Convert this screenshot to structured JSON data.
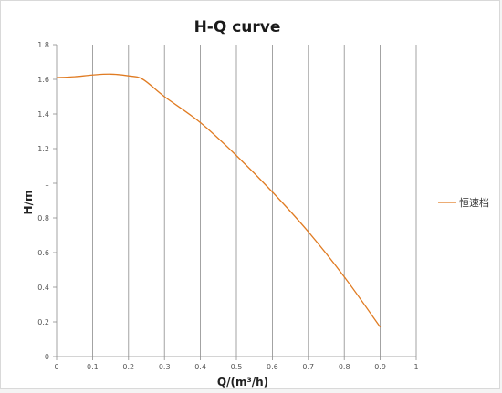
{
  "chart_data": {
    "type": "line",
    "title": "H-Q  curve",
    "xlabel": "Q/(m³/h)",
    "ylabel": "H/m",
    "xlim": [
      0,
      1
    ],
    "ylim": [
      0,
      1.8
    ],
    "x_ticks": [
      0,
      0.1,
      0.2,
      0.3,
      0.4,
      0.5,
      0.6,
      0.7,
      0.8,
      0.9,
      1
    ],
    "x_tick_labels": [
      "0",
      "0.1",
      "0.2",
      "0.3",
      "0.4",
      "0.5",
      "0.6",
      "0.7",
      "0.8",
      "0.9",
      "1"
    ],
    "y_ticks": [
      0,
      0.2,
      0.4,
      0.6,
      0.8,
      1,
      1.2,
      1.4,
      1.6,
      1.8
    ],
    "y_tick_labels": [
      "0",
      "0.2",
      "0.4",
      "0.6",
      "0.8",
      "1",
      "1.2",
      "1.4",
      "1.6",
      "1.8"
    ],
    "grid": "vertical",
    "legend_position": "right",
    "series": [
      {
        "name": "恒速档",
        "color": "#e07b22",
        "x": [
          0,
          0.05,
          0.1,
          0.15,
          0.2,
          0.24,
          0.3,
          0.4,
          0.5,
          0.6,
          0.7,
          0.8,
          0.9
        ],
        "y": [
          1.61,
          1.615,
          1.625,
          1.63,
          1.62,
          1.6,
          1.5,
          1.35,
          1.16,
          0.95,
          0.72,
          0.46,
          0.17
        ]
      }
    ]
  }
}
